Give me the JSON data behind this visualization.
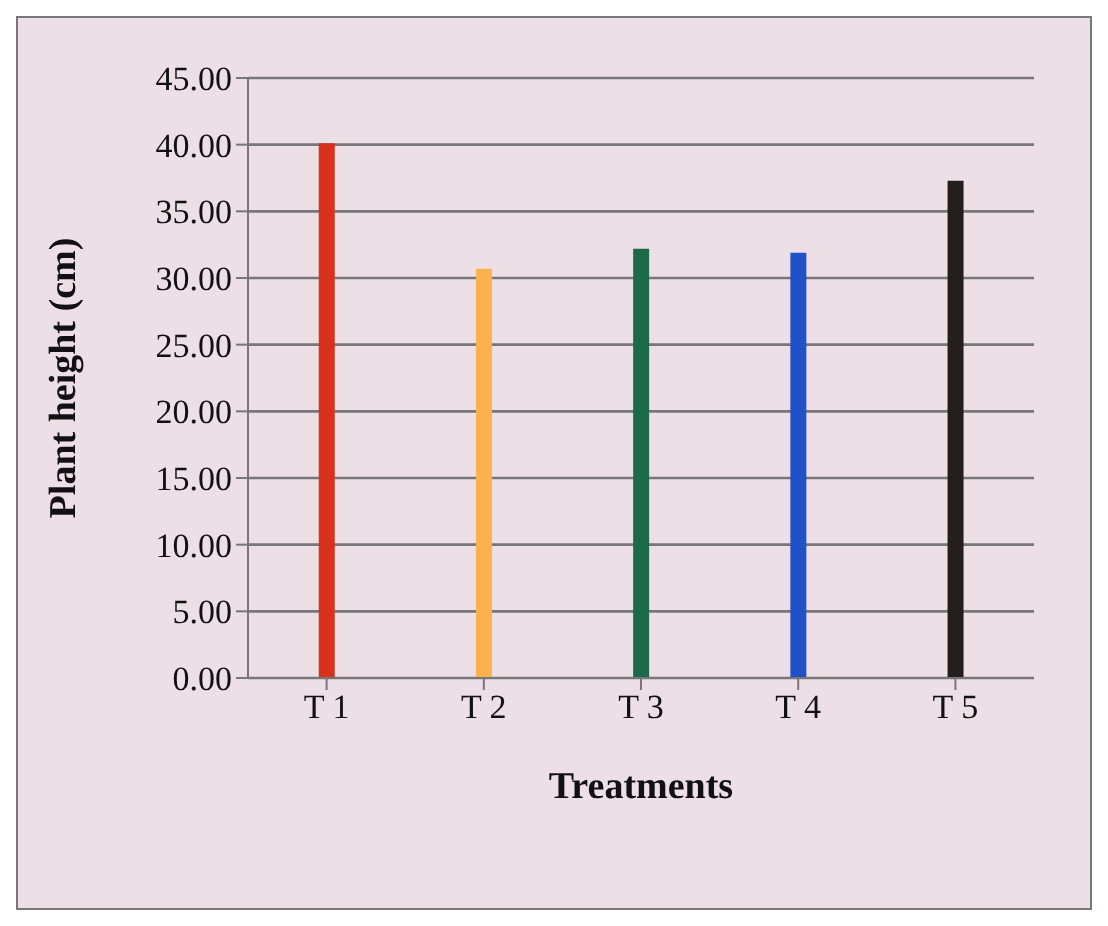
{
  "chart_data": {
    "type": "bar",
    "xlabel": "Treatments",
    "ylabel": "Plant height (cm)",
    "categories": [
      "T 1",
      "T 2",
      "T 3",
      "T 4",
      "T 5"
    ],
    "values": [
      40.1,
      30.7,
      32.2,
      31.9,
      37.3
    ],
    "colors": [
      "#d8321c",
      "#fdb04e",
      "#1c6a4a",
      "#2151c8",
      "#231f1c"
    ],
    "ylim": [
      0,
      45
    ],
    "yticks": [
      {
        "value": 0,
        "label": "0.00"
      },
      {
        "value": 5,
        "label": "5.00"
      },
      {
        "value": 10,
        "label": "10.00"
      },
      {
        "value": 15,
        "label": "15.00"
      },
      {
        "value": 20,
        "label": "20.00"
      },
      {
        "value": 25,
        "label": "25.00"
      },
      {
        "value": 30,
        "label": "30.00"
      },
      {
        "value": 35,
        "label": "35.00"
      },
      {
        "value": 40,
        "label": "40.00"
      },
      {
        "value": 45,
        "label": "45.00"
      }
    ],
    "grid": "y",
    "legend": false
  }
}
